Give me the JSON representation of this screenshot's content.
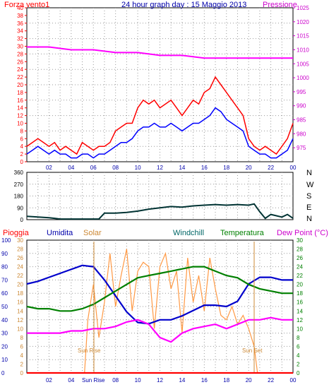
{
  "chart_data": [
    {
      "type": "line",
      "title": "24 hour graph day : 15 Maggio 2013",
      "left_label": "Forza vento1",
      "right_label": "Pressione",
      "x_ticks": [
        "02",
        "04",
        "06",
        "08",
        "10",
        "12",
        "14",
        "16",
        "18",
        "20",
        "22",
        "00"
      ],
      "x_range": [
        0,
        24
      ],
      "y_left_range": [
        0,
        40
      ],
      "y_left_ticks": [
        "0",
        "2",
        "4",
        "6",
        "8",
        "10",
        "12",
        "14",
        "16",
        "18",
        "20",
        "22",
        "24",
        "26",
        "28",
        "30",
        "32",
        "34",
        "36",
        "38",
        "40"
      ],
      "y_right_range": [
        970,
        1025
      ],
      "y_right_ticks": [
        "975",
        "980",
        "985",
        "990",
        "995",
        "1000",
        "1005",
        "1010",
        "1015",
        "1020",
        "1025"
      ],
      "colors": {
        "gust": "#ff0000",
        "wind": "#0000ff",
        "pressure": "#ff00ff"
      },
      "series": [
        {
          "key": "gust",
          "axis": "left",
          "x": [
            0,
            0.5,
            1,
            1.5,
            2,
            2.5,
            3,
            3.5,
            4,
            4.5,
            5,
            5.5,
            6,
            6.5,
            7,
            7.5,
            8,
            8.5,
            9,
            9.5,
            10,
            10.5,
            11,
            11.5,
            12,
            12.5,
            13,
            13.5,
            14,
            14.5,
            15,
            15.5,
            16,
            16.5,
            17,
            17.5,
            18,
            18.5,
            19,
            19.5,
            20,
            20.5,
            21,
            21.5,
            22,
            22.5,
            23,
            23.5,
            24
          ],
          "values": [
            4,
            5,
            6,
            5,
            4,
            5,
            3,
            4,
            3,
            2,
            5,
            4,
            3,
            4,
            4,
            5,
            8,
            9,
            10,
            10,
            14,
            16,
            15,
            16,
            14,
            15,
            16,
            14,
            12,
            14,
            16,
            15,
            18,
            19,
            22,
            20,
            18,
            16,
            14,
            12,
            6,
            4,
            3,
            4,
            3,
            2,
            4,
            6,
            10
          ]
        },
        {
          "key": "wind",
          "axis": "left",
          "x": [
            0,
            0.5,
            1,
            1.5,
            2,
            2.5,
            3,
            3.5,
            4,
            4.5,
            5,
            5.5,
            6,
            6.5,
            7,
            7.5,
            8,
            8.5,
            9,
            9.5,
            10,
            10.5,
            11,
            11.5,
            12,
            12.5,
            13,
            13.5,
            14,
            14.5,
            15,
            15.5,
            16,
            16.5,
            17,
            17.5,
            18,
            18.5,
            19,
            19.5,
            20,
            20.5,
            21,
            21.5,
            22,
            22.5,
            23,
            23.5,
            24
          ],
          "values": [
            2,
            3,
            4,
            3,
            2,
            3,
            2,
            2,
            1,
            1,
            2,
            2,
            1,
            2,
            2,
            3,
            4,
            5,
            5,
            6,
            8,
            9,
            9,
            10,
            9,
            9,
            10,
            9,
            8,
            9,
            10,
            10,
            11,
            12,
            14,
            13,
            11,
            10,
            9,
            8,
            4,
            3,
            2,
            2,
            1,
            1,
            2,
            3,
            6
          ]
        },
        {
          "key": "pressure",
          "axis": "right",
          "x": [
            0,
            2,
            4,
            6,
            8,
            10,
            12,
            14,
            16,
            18,
            20,
            22,
            24
          ],
          "values": [
            1011,
            1011,
            1010,
            1010,
            1009,
            1009,
            1008,
            1008,
            1007,
            1007,
            1007,
            1007,
            1007
          ]
        }
      ]
    },
    {
      "type": "line",
      "direction_labels": [
        "N",
        "W",
        "S",
        "E",
        "N"
      ],
      "x_range": [
        0,
        24
      ],
      "y_range": [
        0,
        360
      ],
      "y_ticks": [
        "0",
        "90",
        "180",
        "270",
        "360"
      ],
      "colors": {
        "direction": "#003333"
      },
      "series": [
        {
          "key": "direction",
          "x": [
            0,
            1,
            2,
            2.5,
            3,
            4,
            5,
            6,
            6.5,
            7,
            8,
            9,
            10,
            11,
            12,
            13,
            14,
            15,
            16,
            17,
            18,
            19,
            20,
            20.5,
            21,
            21.5,
            22,
            23,
            23.5,
            24
          ],
          "values": [
            25,
            20,
            15,
            10,
            5,
            5,
            5,
            5,
            5,
            50,
            50,
            55,
            65,
            80,
            90,
            100,
            95,
            105,
            110,
            115,
            110,
            115,
            110,
            120,
            60,
            10,
            40,
            20,
            40,
            10
          ]
        }
      ]
    },
    {
      "type": "line",
      "labels": {
        "rain": "Pioggia",
        "humidity": "Umidita",
        "solar": "Solar",
        "windchill": "Windchill",
        "temperature": "Temperatura",
        "dewpoint": "Dew Point (°C)"
      },
      "x_range": [
        0,
        24
      ],
      "x_ticks": [
        "02",
        "04",
        "Sun Rise",
        "08",
        "10",
        "12",
        "14",
        "16",
        "18",
        "20",
        "22",
        "00"
      ],
      "annotations": [
        "Sun Rise",
        "Sun Set"
      ],
      "y_left_range": [
        0,
        100
      ],
      "y_left_ticks": [
        "0",
        "10",
        "20",
        "30",
        "40",
        "50",
        "60",
        "70",
        "80",
        "90",
        "100"
      ],
      "y_mid_range": [
        0,
        30
      ],
      "y_mid_ticks": [
        "0",
        "2",
        "4",
        "6",
        "8",
        "10",
        "12",
        "14",
        "16",
        "18",
        "20",
        "22",
        "24",
        "26",
        "28",
        "30"
      ],
      "y_right_range": [
        0,
        30
      ],
      "y_right_ticks": [
        "0",
        "2",
        "4",
        "6",
        "8",
        "10",
        "12",
        "14",
        "16",
        "18",
        "20",
        "22",
        "24",
        "26",
        "28",
        "30"
      ],
      "colors": {
        "rain": "#ff0000",
        "humidity": "#0000cc",
        "solar": "#ff9944",
        "temperature": "#008000",
        "dewpoint": "#ff00ff"
      },
      "series": [
        {
          "key": "humidity",
          "axis": "left",
          "x": [
            0,
            1,
            2,
            3,
            4,
            5,
            6,
            7,
            8,
            9,
            10,
            11,
            12,
            13,
            14,
            15,
            16,
            17,
            18,
            19,
            20,
            21,
            22,
            23,
            24
          ],
          "values": [
            67,
            69,
            72,
            75,
            78,
            81,
            80,
            70,
            58,
            46,
            38,
            37,
            40,
            40,
            43,
            47,
            51,
            51,
            50,
            54,
            67,
            72,
            72,
            70,
            70
          ]
        },
        {
          "key": "temperature",
          "axis": "right",
          "x": [
            0,
            1,
            2,
            3,
            4,
            5,
            6,
            7,
            8,
            9,
            10,
            11,
            12,
            13,
            14,
            15,
            16,
            17,
            18,
            19,
            20,
            21,
            22,
            23,
            24
          ],
          "values": [
            15,
            14.5,
            14.5,
            14,
            14,
            14.5,
            15.5,
            17,
            18.5,
            20,
            21.5,
            22,
            22.5,
            23,
            23.5,
            24,
            24,
            23,
            22,
            21.5,
            20,
            19,
            18.5,
            18,
            18
          ]
        },
        {
          "key": "dewpoint",
          "axis": "right",
          "x": [
            0,
            1,
            2,
            3,
            4,
            5,
            6,
            7,
            8,
            9,
            10,
            11,
            12,
            13,
            14,
            15,
            16,
            17,
            18,
            19,
            20,
            21,
            22,
            23,
            24
          ],
          "values": [
            9,
            9,
            9,
            9,
            9.5,
            9.5,
            10,
            10,
            10.5,
            11.5,
            12,
            11,
            8,
            7,
            9,
            10,
            10.5,
            11,
            10,
            11,
            12,
            12,
            12.5,
            12,
            12
          ]
        },
        {
          "key": "solar",
          "axis": "mid",
          "x": [
            5.2,
            5.5,
            6,
            6.5,
            7,
            7.5,
            8,
            8.5,
            9,
            9.5,
            10,
            10.5,
            11,
            11.5,
            12,
            12.5,
            13,
            13.5,
            14,
            14.5,
            15,
            15.5,
            16,
            16.5,
            17,
            17.5,
            18,
            18.5,
            19,
            19.5,
            20,
            20.5,
            20.8
          ],
          "values": [
            0,
            12,
            20,
            8,
            16,
            27,
            15,
            22,
            28,
            14,
            23,
            25,
            24,
            10,
            24,
            27,
            19,
            23,
            9,
            26,
            16,
            22,
            14,
            26,
            19,
            13,
            12,
            15,
            11,
            13,
            10,
            6,
            0
          ]
        },
        {
          "key": "rain",
          "axis": "left",
          "x": [
            0,
            24
          ],
          "values": [
            0,
            0
          ]
        }
      ]
    }
  ]
}
